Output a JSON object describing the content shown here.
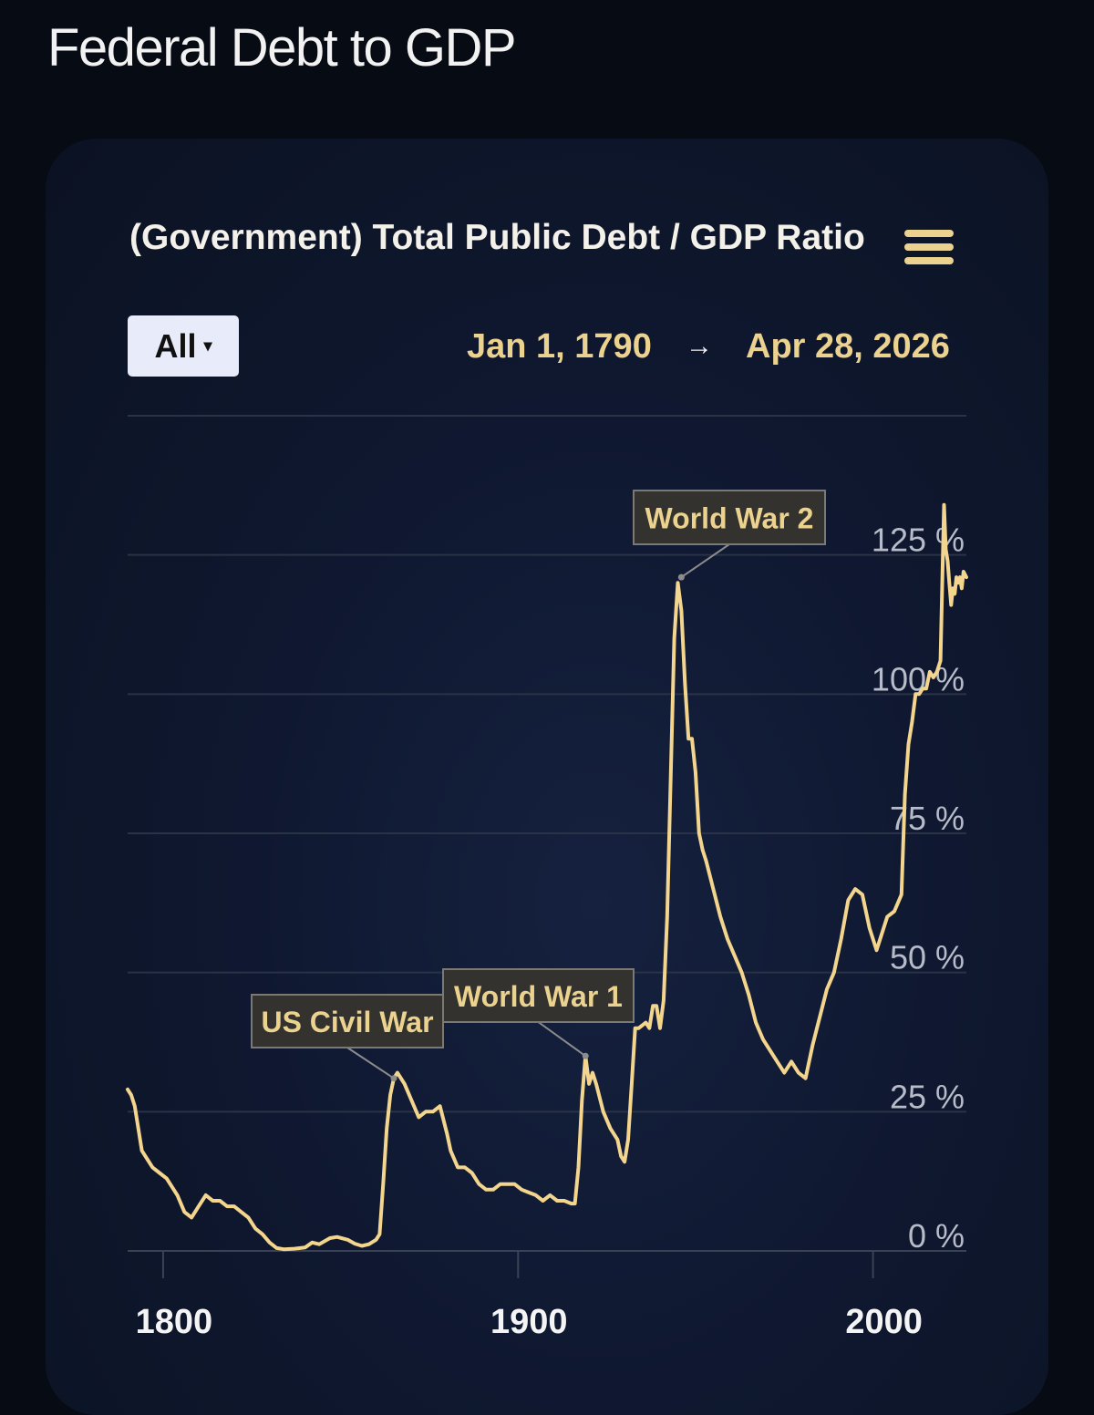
{
  "page": {
    "title": "Federal Debt to GDP"
  },
  "toolbar": {
    "range_label": "All",
    "range_caret": "▾",
    "date_start": "Jan 1, 1790",
    "date_arrow": "→",
    "date_end": "Apr 28, 2026",
    "menu_icon": "hamburger-menu-icon"
  },
  "colors": {
    "background": "#070b14",
    "card": "#0f1830",
    "line": "#f4d58d",
    "accent": "#ecd28f",
    "gridline": "#2a3246",
    "axis_label": "#b8bcc8"
  },
  "chart_data": {
    "type": "line",
    "title": "(Government) Total Public Debt / GDP Ratio",
    "xlabel": "",
    "ylabel": "",
    "xlim": [
      1790,
      2026.3
    ],
    "ylim": [
      0,
      150
    ],
    "x_ticks": [
      {
        "value": 1800,
        "label": "1800"
      },
      {
        "value": 1900,
        "label": "1900"
      },
      {
        "value": 2000,
        "label": "2000"
      }
    ],
    "y_ticks": [
      {
        "value": 0,
        "label": "0 %"
      },
      {
        "value": 25,
        "label": "25 %"
      },
      {
        "value": 50,
        "label": "50 %"
      },
      {
        "value": 75,
        "label": "75 %"
      },
      {
        "value": 100,
        "label": "100 %"
      },
      {
        "value": 125,
        "label": "125 %"
      }
    ],
    "grid": true,
    "legend": "none",
    "series": [
      {
        "values": [
          [
            1790,
            29
          ],
          [
            1791,
            28
          ],
          [
            1792,
            26
          ],
          [
            1794,
            18
          ],
          [
            1795,
            17
          ],
          [
            1797,
            15
          ],
          [
            1799,
            14
          ],
          [
            1801,
            13
          ],
          [
            1804,
            10
          ],
          [
            1806,
            7
          ],
          [
            1808,
            6
          ],
          [
            1810,
            8
          ],
          [
            1812,
            10
          ],
          [
            1814,
            9
          ],
          [
            1816,
            9
          ],
          [
            1818,
            8
          ],
          [
            1820,
            8
          ],
          [
            1822,
            7
          ],
          [
            1824,
            6
          ],
          [
            1826,
            4
          ],
          [
            1828,
            3
          ],
          [
            1830,
            1.5
          ],
          [
            1832,
            0.5
          ],
          [
            1834,
            0.3
          ],
          [
            1837,
            0.4
          ],
          [
            1840,
            0.6
          ],
          [
            1842,
            1.5
          ],
          [
            1844,
            1.2
          ],
          [
            1847,
            2.3
          ],
          [
            1849,
            2.5
          ],
          [
            1852,
            2.0
          ],
          [
            1854,
            1.3
          ],
          [
            1856,
            0.9
          ],
          [
            1858,
            1.2
          ],
          [
            1860,
            2.0
          ],
          [
            1861,
            3.0
          ],
          [
            1862,
            12
          ],
          [
            1863,
            22
          ],
          [
            1864,
            28
          ],
          [
            1865,
            31
          ],
          [
            1866,
            32
          ],
          [
            1867,
            31
          ],
          [
            1868,
            30
          ],
          [
            1870,
            27
          ],
          [
            1872,
            24
          ],
          [
            1874,
            25
          ],
          [
            1876,
            25
          ],
          [
            1878,
            26
          ],
          [
            1880,
            21
          ],
          [
            1881,
            18
          ],
          [
            1883,
            15
          ],
          [
            1885,
            15
          ],
          [
            1887,
            14
          ],
          [
            1889,
            12
          ],
          [
            1891,
            11
          ],
          [
            1893,
            11
          ],
          [
            1895,
            12
          ],
          [
            1897,
            12
          ],
          [
            1899,
            12
          ],
          [
            1901,
            11
          ],
          [
            1903,
            10.5
          ],
          [
            1905,
            10
          ],
          [
            1907,
            9
          ],
          [
            1909,
            10
          ],
          [
            1911,
            9
          ],
          [
            1913,
            9
          ],
          [
            1915,
            8.5
          ],
          [
            1916,
            8.5
          ],
          [
            1917,
            15
          ],
          [
            1918,
            27
          ],
          [
            1919,
            35
          ],
          [
            1920,
            30
          ],
          [
            1921,
            32
          ],
          [
            1922,
            30
          ],
          [
            1924,
            25
          ],
          [
            1926,
            22
          ],
          [
            1928,
            20
          ],
          [
            1929,
            17
          ],
          [
            1930,
            16
          ],
          [
            1931,
            20
          ],
          [
            1932,
            30
          ],
          [
            1933,
            40
          ],
          [
            1934,
            40
          ],
          [
            1936,
            41
          ],
          [
            1937,
            40
          ],
          [
            1938,
            44
          ],
          [
            1939,
            44
          ],
          [
            1940,
            40
          ],
          [
            1941,
            45
          ],
          [
            1942,
            60
          ],
          [
            1943,
            85
          ],
          [
            1944,
            110
          ],
          [
            1945,
            120
          ],
          [
            1946,
            115
          ],
          [
            1947,
            102
          ],
          [
            1948,
            92
          ],
          [
            1949,
            92
          ],
          [
            1950,
            86
          ],
          [
            1951,
            75
          ],
          [
            1952,
            72
          ],
          [
            1953,
            70
          ],
          [
            1955,
            65
          ],
          [
            1957,
            60
          ],
          [
            1959,
            56
          ],
          [
            1961,
            53
          ],
          [
            1963,
            50
          ],
          [
            1965,
            46
          ],
          [
            1967,
            41
          ],
          [
            1969,
            38
          ],
          [
            1971,
            36
          ],
          [
            1973,
            34
          ],
          [
            1975,
            32
          ],
          [
            1977,
            34
          ],
          [
            1979,
            32
          ],
          [
            1981,
            31
          ],
          [
            1983,
            37
          ],
          [
            1985,
            42
          ],
          [
            1987,
            47
          ],
          [
            1989,
            50
          ],
          [
            1991,
            56
          ],
          [
            1993,
            63
          ],
          [
            1995,
            65
          ],
          [
            1997,
            64
          ],
          [
            1999,
            58
          ],
          [
            2001,
            54
          ],
          [
            2002,
            56
          ],
          [
            2004,
            60
          ],
          [
            2006,
            61
          ],
          [
            2008,
            64
          ],
          [
            2009,
            82
          ],
          [
            2010,
            91
          ],
          [
            2011,
            95
          ],
          [
            2012,
            100
          ],
          [
            2013,
            100
          ],
          [
            2014,
            101
          ],
          [
            2015,
            101
          ],
          [
            2016,
            104
          ],
          [
            2017,
            103
          ],
          [
            2018,
            104
          ],
          [
            2019,
            106
          ],
          [
            2020,
            134
          ],
          [
            2020.5,
            126
          ],
          [
            2021,
            124
          ],
          [
            2021.5,
            120
          ],
          [
            2022,
            116
          ],
          [
            2022.5,
            119
          ],
          [
            2023,
            118
          ],
          [
            2023.5,
            121
          ],
          [
            2024,
            120
          ],
          [
            2024.5,
            121
          ],
          [
            2025,
            119
          ],
          [
            2025.5,
            122
          ],
          [
            2026.3,
            121
          ]
        ]
      }
    ],
    "annotations": [
      {
        "text": "US Civil War",
        "x": 1865,
        "y": 31
      },
      {
        "text": "World War 1",
        "x": 1919,
        "y": 35
      },
      {
        "text": "World War 2",
        "x": 1946,
        "y": 121
      }
    ]
  }
}
